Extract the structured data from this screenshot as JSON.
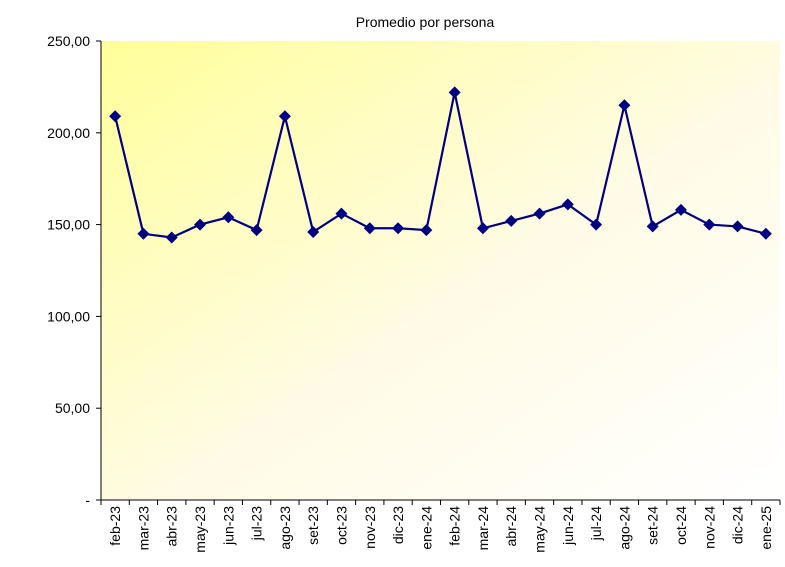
{
  "chart_data": {
    "type": "line",
    "title": "Promedio por persona",
    "categories": [
      "feb-23",
      "mar-23",
      "abr-23",
      "may-23",
      "jun-23",
      "jul-23",
      "ago-23",
      "set-23",
      "oct-23",
      "nov-23",
      "dic-23",
      "ene-24",
      "feb-24",
      "mar-24",
      "abr-24",
      "may-24",
      "jun-24",
      "jul-24",
      "ago-24",
      "set-24",
      "oct-24",
      "nov-24",
      "dic-24",
      "ene-25"
    ],
    "values": [
      209,
      145,
      143,
      150,
      154,
      147,
      209,
      146,
      156,
      148,
      148,
      147,
      222,
      148,
      152,
      156,
      161,
      150,
      215,
      149,
      158,
      150,
      149,
      145
    ],
    "color": "#000080",
    "ylim": [
      0,
      250
    ],
    "yticks": [
      {
        "value": 0,
        "label": "-"
      },
      {
        "value": 50,
        "label": "50,00"
      },
      {
        "value": 100,
        "label": "100,00"
      },
      {
        "value": 150,
        "label": "150,00"
      },
      {
        "value": 200,
        "label": "200,00"
      },
      {
        "value": 250,
        "label": "250,00"
      }
    ],
    "grid": false
  }
}
